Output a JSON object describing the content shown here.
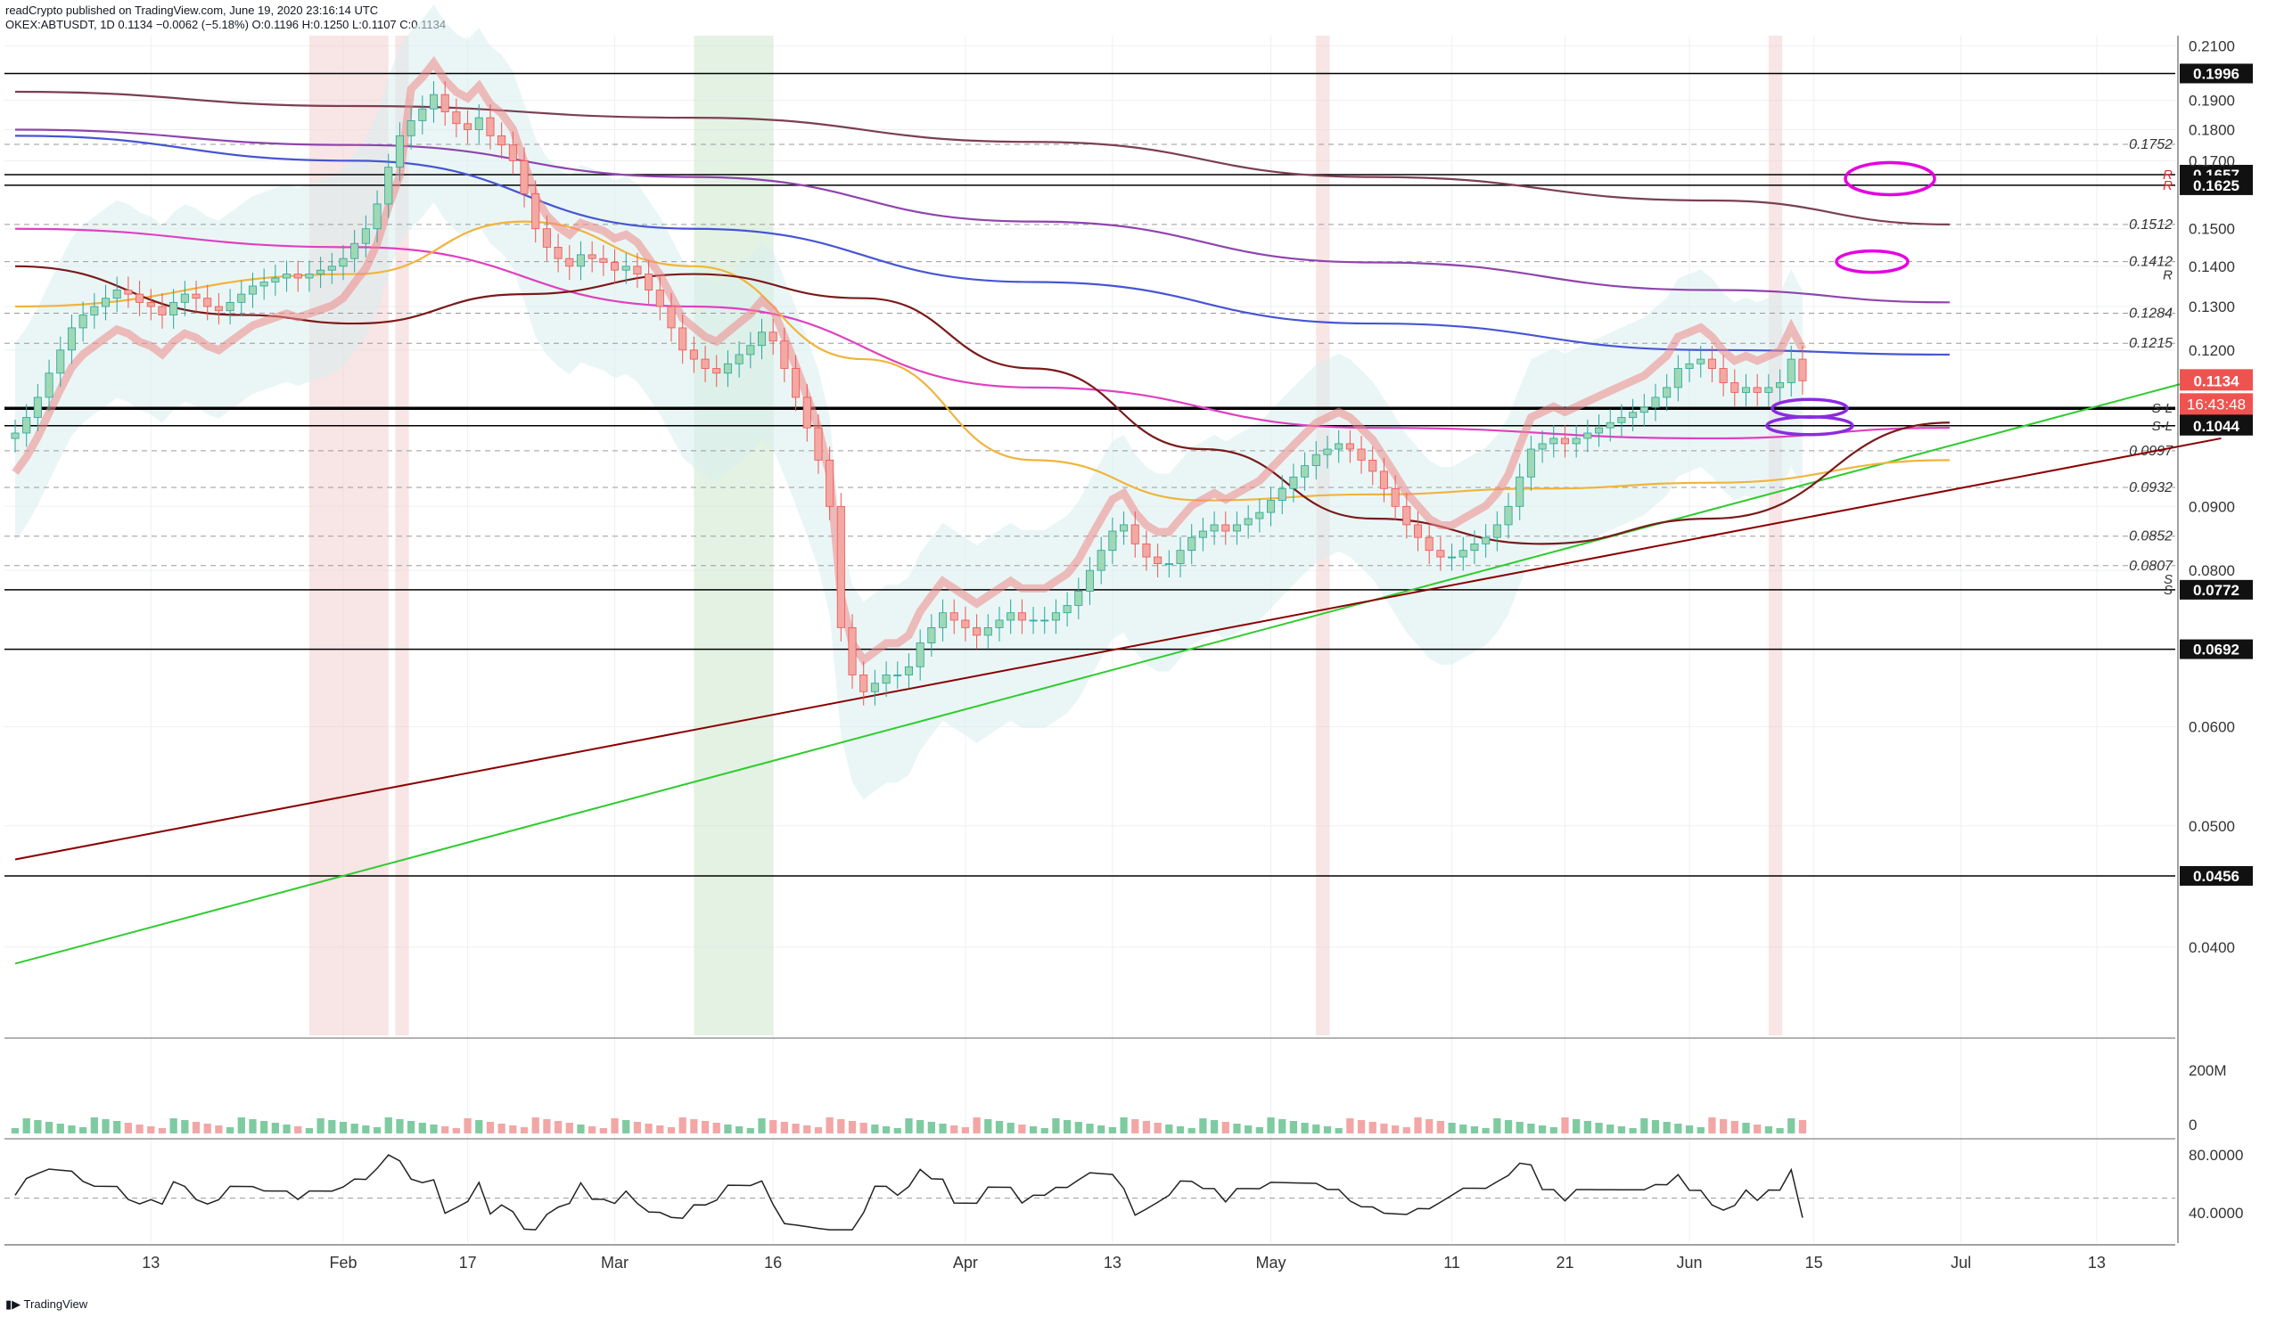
{
  "header": {
    "line1": "readCrypto published on TradingView.com, June 19, 2020 23:16:14 UTC",
    "line2": "OKEX:ABTUSDT, 1D  0.1134  −0.0062 (−5.18%)  O:0.1196  H:0.1250  L:0.1107  C:0.1134"
  },
  "footer": {
    "brand": "TradingView"
  },
  "colors": {
    "grid": "#eef0f3",
    "text": "#131722",
    "price_tag": "#ef5350",
    "green_line": "#2ecc2e",
    "red_line": "#8b0000",
    "magenta": "#e400e0",
    "purple": "#8a2be2",
    "candle_up": "#9fd8b4",
    "candle_down": "#f4a8a3"
  },
  "chart_data": [
    {
      "type": "candlestick",
      "title": "OKEX:ABTUSDT, 1D",
      "x_tick_labels": [
        "13",
        "Feb",
        "17",
        "Mar",
        "16",
        "Apr",
        "13",
        "May",
        "11",
        "21",
        "Jun",
        "15",
        "Jul",
        "13"
      ],
      "y_tick_labels": [
        "0.2100",
        "0.1900",
        "0.1800",
        "0.1700",
        "0.1500",
        "0.1400",
        "0.1300",
        "0.1200",
        "0.0900",
        "0.0800",
        "0.0600",
        "0.0500",
        "0.0400"
      ],
      "ylim": [
        0.034,
        0.214
      ],
      "log_scale": true,
      "grid": true,
      "current_price": "0.1134",
      "countdown": "16:43:48",
      "boxed_levels": [
        {
          "label": "0.1996",
          "value": 0.1996
        },
        {
          "label": "0.1657",
          "value": 0.1657,
          "tag": "R"
        },
        {
          "label": "0.1625",
          "value": 0.1625,
          "tag": "R"
        },
        {
          "label": "0.1078",
          "value": 0.1078,
          "tag": "S-L"
        },
        {
          "label": "0.1044",
          "value": 0.1044,
          "tag": "S-L"
        },
        {
          "label": "0.0772",
          "value": 0.0772,
          "tag": "S"
        },
        {
          "label": "0.0692",
          "value": 0.0692
        },
        {
          "label": "0.0456",
          "value": 0.0456
        }
      ],
      "fib_levels": [
        {
          "label": "0.1752",
          "value": 0.1752
        },
        {
          "label": "0.1512",
          "value": 0.1512
        },
        {
          "label": "0.1412",
          "value": 0.1412,
          "tag": "R"
        },
        {
          "label": "0.1284",
          "value": 0.1284
        },
        {
          "label": "0.1215",
          "value": 0.1215
        },
        {
          "label": "0.0997",
          "value": 0.0997
        },
        {
          "label": "0.0932",
          "value": 0.0932
        },
        {
          "label": "0.0852",
          "value": 0.0852
        },
        {
          "label": "0.0807",
          "value": 0.0807,
          "tag": "S"
        }
      ],
      "close_series": [
        0.103,
        0.106,
        0.11,
        0.115,
        0.12,
        0.125,
        0.128,
        0.13,
        0.132,
        0.134,
        0.133,
        0.131,
        0.13,
        0.128,
        0.131,
        0.133,
        0.132,
        0.13,
        0.129,
        0.131,
        0.133,
        0.135,
        0.136,
        0.137,
        0.138,
        0.137,
        0.138,
        0.139,
        0.14,
        0.142,
        0.146,
        0.15,
        0.157,
        0.168,
        0.178,
        0.183,
        0.187,
        0.192,
        0.186,
        0.182,
        0.18,
        0.184,
        0.178,
        0.175,
        0.17,
        0.16,
        0.15,
        0.145,
        0.142,
        0.14,
        0.143,
        0.142,
        0.141,
        0.139,
        0.14,
        0.138,
        0.134,
        0.13,
        0.125,
        0.12,
        0.118,
        0.116,
        0.115,
        0.117,
        0.119,
        0.121,
        0.124,
        0.122,
        0.116,
        0.11,
        0.104,
        0.098,
        0.09,
        0.072,
        0.066,
        0.064,
        0.065,
        0.066,
        0.066,
        0.067,
        0.07,
        0.072,
        0.074,
        0.073,
        0.072,
        0.071,
        0.072,
        0.073,
        0.074,
        0.073,
        0.073,
        0.073,
        0.074,
        0.075,
        0.077,
        0.08,
        0.083,
        0.086,
        0.087,
        0.084,
        0.082,
        0.081,
        0.081,
        0.083,
        0.085,
        0.086,
        0.087,
        0.086,
        0.087,
        0.088,
        0.089,
        0.091,
        0.093,
        0.095,
        0.097,
        0.099,
        0.1,
        0.101,
        0.1,
        0.098,
        0.096,
        0.093,
        0.09,
        0.087,
        0.085,
        0.083,
        0.082,
        0.082,
        0.083,
        0.084,
        0.085,
        0.087,
        0.09,
        0.095,
        0.1,
        0.101,
        0.102,
        0.101,
        0.102,
        0.103,
        0.104,
        0.105,
        0.106,
        0.107,
        0.108,
        0.11,
        0.112,
        0.116,
        0.117,
        0.118,
        0.116,
        0.113,
        0.111,
        0.112,
        0.111,
        0.112,
        0.113,
        0.118,
        0.1134
      ],
      "moving_averages": [
        {
          "color": "#7b3f52",
          "values": [
            [
              0,
              0.193
            ],
            [
              30,
              0.188
            ],
            [
              60,
              0.184
            ],
            [
              90,
              0.176
            ],
            [
              120,
              0.165
            ],
            [
              150,
              0.158
            ],
            [
              171,
              0.1512
            ]
          ]
        },
        {
          "color": "#8e44ad",
          "values": [
            [
              0,
              0.18
            ],
            [
              30,
              0.175
            ],
            [
              60,
              0.165
            ],
            [
              90,
              0.152
            ],
            [
              120,
              0.141
            ],
            [
              150,
              0.134
            ],
            [
              171,
              0.131
            ]
          ]
        },
        {
          "color": "#4655d4",
          "values": [
            [
              0,
              0.178
            ],
            [
              30,
              0.17
            ],
            [
              60,
              0.15
            ],
            [
              90,
              0.136
            ],
            [
              120,
              0.126
            ],
            [
              150,
              0.12
            ],
            [
              171,
              0.119
            ]
          ]
        },
        {
          "color": "#e040c0",
          "values": [
            [
              0,
              0.15
            ],
            [
              30,
              0.145
            ],
            [
              60,
              0.13
            ],
            [
              90,
              0.112
            ],
            [
              120,
              0.104
            ],
            [
              150,
              0.102
            ],
            [
              171,
              0.104
            ]
          ]
        },
        {
          "color": "#f0b43c",
          "values": [
            [
              0,
              0.13
            ],
            [
              30,
              0.138
            ],
            [
              45,
              0.152
            ],
            [
              60,
              0.14
            ],
            [
              75,
              0.118
            ],
            [
              90,
              0.098
            ],
            [
              105,
              0.091
            ],
            [
              120,
              0.092
            ],
            [
              135,
              0.093
            ],
            [
              150,
              0.094
            ],
            [
              171,
              0.098
            ]
          ]
        },
        {
          "color": "#7a1a1a",
          "values": [
            [
              0,
              0.14
            ],
            [
              20,
              0.128
            ],
            [
              30,
              0.126
            ],
            [
              45,
              0.133
            ],
            [
              60,
              0.138
            ],
            [
              75,
              0.132
            ],
            [
              90,
              0.116
            ],
            [
              105,
              0.1
            ],
            [
              120,
              0.088
            ],
            [
              135,
              0.084
            ],
            [
              150,
              0.088
            ],
            [
              171,
              0.105
            ]
          ]
        }
      ],
      "trendlines": [
        {
          "color": "#2ecc2e",
          "from": [
            0,
            0.0388
          ],
          "to": [
            195,
            0.115
          ]
        },
        {
          "color": "#8b0000",
          "from": [
            0,
            0.047
          ],
          "to": [
            195,
            0.102
          ]
        }
      ],
      "volume_axis_labels": [
        "200M",
        "0"
      ],
      "rsi_axis_labels": [
        "80.0000",
        "40.0000"
      ]
    }
  ]
}
